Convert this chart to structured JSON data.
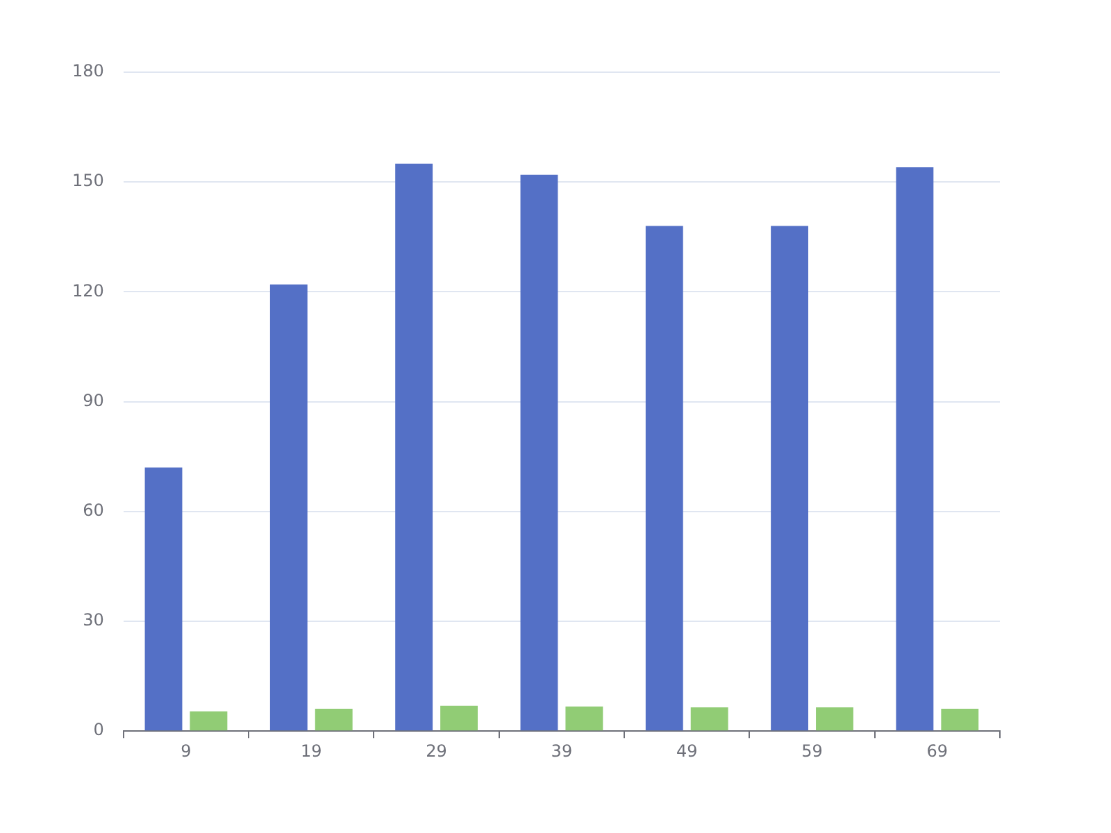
{
  "chart_data": {
    "type": "bar",
    "categories": [
      "9",
      "19",
      "29",
      "39",
      "49",
      "59",
      "69"
    ],
    "series": [
      {
        "color": "#5470c6",
        "values": [
          72,
          122,
          155,
          152,
          138,
          138,
          154
        ]
      },
      {
        "color": "#91cc75",
        "values": [
          5.4,
          6.1,
          6.9,
          6.7,
          6.5,
          6.5,
          6.1
        ]
      }
    ],
    "ylim": [
      0,
      180
    ],
    "yticks": [
      0,
      30,
      60,
      90,
      120,
      150,
      180
    ],
    "grid": "y",
    "legend": false
  }
}
